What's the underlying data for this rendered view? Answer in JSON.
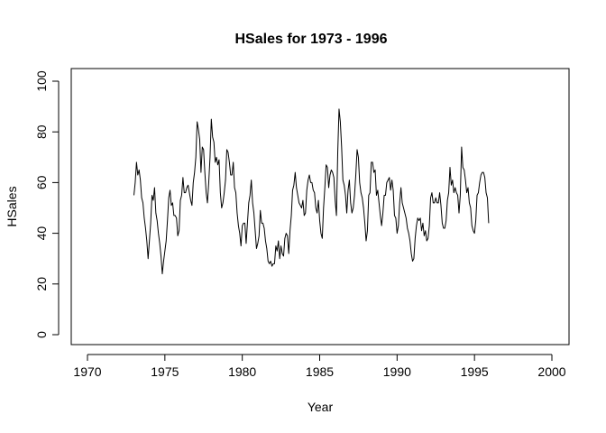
{
  "chart_data": {
    "type": "line",
    "title": "HSales for 1973 - 1996",
    "xlabel": "Year",
    "ylabel": "HSales",
    "xlim": [
      1970,
      2000
    ],
    "ylim": [
      0,
      100
    ],
    "x_ticks": [
      1970,
      1975,
      1980,
      1985,
      1990,
      1995,
      2000
    ],
    "y_ticks": [
      0,
      20,
      40,
      60,
      80,
      100
    ],
    "x_tick_labels": [
      "1970",
      "1975",
      "1980",
      "1985",
      "1990",
      "1995",
      "2000"
    ],
    "y_tick_labels": [
      "0",
      "20",
      "40",
      "60",
      "80",
      "100"
    ],
    "grid": false,
    "series": [
      {
        "name": "",
        "x": [
          1973.0,
          1973.083,
          1973.167,
          1973.25,
          1973.333,
          1973.417,
          1973.5,
          1973.583,
          1973.667,
          1973.75,
          1973.833,
          1973.917,
          1974.0,
          1974.083,
          1974.167,
          1974.25,
          1974.333,
          1974.417,
          1974.5,
          1974.583,
          1974.667,
          1974.75,
          1974.833,
          1974.917,
          1975.0,
          1975.083,
          1975.167,
          1975.25,
          1975.333,
          1975.417,
          1975.5,
          1975.583,
          1975.667,
          1975.75,
          1975.833,
          1975.917,
          1976.0,
          1976.083,
          1976.167,
          1976.25,
          1976.333,
          1976.417,
          1976.5,
          1976.583,
          1976.667,
          1976.75,
          1976.833,
          1976.917,
          1977.0,
          1977.083,
          1977.167,
          1977.25,
          1977.333,
          1977.417,
          1977.5,
          1977.583,
          1977.667,
          1977.75,
          1977.833,
          1977.917,
          1978.0,
          1978.083,
          1978.167,
          1978.25,
          1978.333,
          1978.417,
          1978.5,
          1978.583,
          1978.667,
          1978.75,
          1978.833,
          1978.917,
          1979.0,
          1979.083,
          1979.167,
          1979.25,
          1979.333,
          1979.417,
          1979.5,
          1979.583,
          1979.667,
          1979.75,
          1979.833,
          1979.917,
          1980.0,
          1980.083,
          1980.167,
          1980.25,
          1980.333,
          1980.417,
          1980.5,
          1980.583,
          1980.667,
          1980.75,
          1980.833,
          1980.917,
          1981.0,
          1981.083,
          1981.167,
          1981.25,
          1981.333,
          1981.417,
          1981.5,
          1981.583,
          1981.667,
          1981.75,
          1981.833,
          1981.917,
          1982.0,
          1982.083,
          1982.167,
          1982.25,
          1982.333,
          1982.417,
          1982.5,
          1982.583,
          1982.667,
          1982.75,
          1982.833,
          1982.917,
          1983.0,
          1983.083,
          1983.167,
          1983.25,
          1983.333,
          1983.417,
          1983.5,
          1983.583,
          1983.667,
          1983.75,
          1983.833,
          1983.917,
          1984.0,
          1984.083,
          1984.167,
          1984.25,
          1984.333,
          1984.417,
          1984.5,
          1984.583,
          1984.667,
          1984.75,
          1984.833,
          1984.917,
          1985.0,
          1985.083,
          1985.167,
          1985.25,
          1985.333,
          1985.417,
          1985.5,
          1985.583,
          1985.667,
          1985.75,
          1985.833,
          1985.917,
          1986.0,
          1986.083,
          1986.167,
          1986.25,
          1986.333,
          1986.417,
          1986.5,
          1986.583,
          1986.667,
          1986.75,
          1986.833,
          1986.917,
          1987.0,
          1987.083,
          1987.167,
          1987.25,
          1987.333,
          1987.417,
          1987.5,
          1987.583,
          1987.667,
          1987.75,
          1987.833,
          1987.917,
          1988.0,
          1988.083,
          1988.167,
          1988.25,
          1988.333,
          1988.417,
          1988.5,
          1988.583,
          1988.667,
          1988.75,
          1988.833,
          1988.917,
          1989.0,
          1989.083,
          1989.167,
          1989.25,
          1989.333,
          1989.417,
          1989.5,
          1989.583,
          1989.667,
          1989.75,
          1989.833,
          1989.917,
          1990.0,
          1990.083,
          1990.167,
          1990.25,
          1990.333,
          1990.417,
          1990.5,
          1990.583,
          1990.667,
          1990.75,
          1990.833,
          1990.917,
          1991.0,
          1991.083,
          1991.167,
          1991.25,
          1991.333,
          1991.417,
          1991.5,
          1991.583,
          1991.667,
          1991.75,
          1991.833,
          1991.917,
          1992.0,
          1992.083,
          1992.167,
          1992.25,
          1992.333,
          1992.417,
          1992.5,
          1992.583,
          1992.667,
          1992.75,
          1992.833,
          1992.917,
          1993.0,
          1993.083,
          1993.167,
          1993.25,
          1993.333,
          1993.417,
          1993.5,
          1993.583,
          1993.667,
          1993.75,
          1993.833,
          1993.917,
          1994.0,
          1994.083,
          1994.167,
          1994.25,
          1994.333,
          1994.417,
          1994.5,
          1994.583,
          1994.667,
          1994.75,
          1994.833,
          1994.917,
          1995.0,
          1995.083,
          1995.167,
          1995.25,
          1995.333,
          1995.417,
          1995.5,
          1995.583,
          1995.667,
          1995.75,
          1995.833,
          1995.917
        ],
        "values": [
          55,
          60,
          68,
          63,
          65,
          61,
          54,
          52,
          46,
          42,
          37,
          30,
          37,
          44,
          55,
          53,
          58,
          48,
          45,
          40,
          36,
          31,
          24,
          29,
          33,
          37,
          45,
          54,
          57,
          51,
          52,
          47,
          47,
          46,
          39,
          41,
          53,
          55,
          62,
          56,
          56,
          58,
          59,
          56,
          53,
          51,
          60,
          64,
          70,
          84,
          81,
          77,
          64,
          74,
          73,
          64,
          56,
          52,
          60,
          70,
          85,
          78,
          76,
          68,
          70,
          67,
          69,
          56,
          50,
          52,
          56,
          61,
          73,
          72,
          68,
          63,
          63,
          68,
          58,
          56,
          48,
          43,
          40,
          35,
          43,
          44,
          44,
          36,
          44,
          52,
          55,
          61,
          52,
          48,
          41,
          34,
          36,
          39,
          49,
          44,
          44,
          42,
          37,
          34,
          29,
          28,
          29,
          27,
          28,
          28,
          35,
          33,
          37,
          30,
          35,
          32,
          31,
          38,
          40,
          39,
          32,
          41,
          47,
          57,
          59,
          64,
          58,
          55,
          52,
          51,
          50,
          53,
          47,
          48,
          57,
          61,
          63,
          60,
          60,
          57,
          56,
          50,
          48,
          53,
          45,
          40,
          38,
          50,
          58,
          67,
          66,
          58,
          63,
          65,
          64,
          62,
          53,
          47,
          72,
          89,
          84,
          74,
          61,
          59,
          55,
          48,
          57,
          61,
          52,
          48,
          50,
          55,
          63,
          73,
          70,
          60,
          56,
          54,
          50,
          44,
          37,
          41,
          55,
          56,
          68,
          68,
          64,
          65,
          55,
          57,
          52,
          47,
          43,
          48,
          55,
          55,
          60,
          61,
          62,
          57,
          61,
          57,
          47,
          46,
          40,
          43,
          52,
          58,
          52,
          50,
          48,
          46,
          42,
          40,
          37,
          32,
          29,
          30,
          38,
          43,
          46,
          45,
          46,
          41,
          44,
          39,
          41,
          37,
          38,
          43,
          54,
          56,
          52,
          52,
          54,
          52,
          52,
          56,
          51,
          44,
          42,
          42,
          45,
          53,
          56,
          66,
          59,
          61,
          56,
          58,
          56,
          55,
          48,
          55,
          74,
          66,
          65,
          61,
          56,
          58,
          52,
          50,
          43,
          41,
          40,
          45,
          55,
          56,
          60,
          63,
          64,
          64,
          62,
          56,
          54,
          44
        ]
      }
    ]
  }
}
